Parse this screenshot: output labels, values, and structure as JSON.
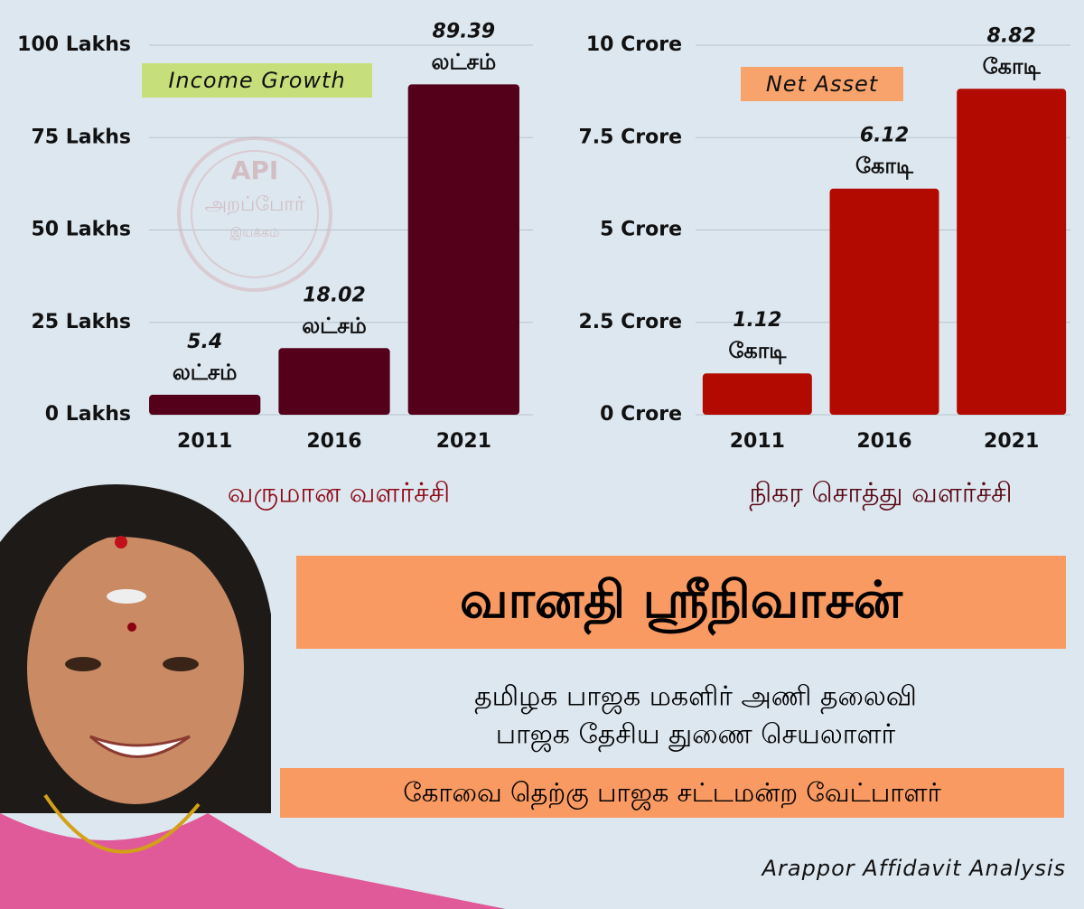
{
  "chart_data": [
    {
      "type": "bar",
      "tag": "Income  Growth",
      "caption": "வருமான வளர்ச்சி",
      "categories": [
        "2011",
        "2016",
        "2021"
      ],
      "values": [
        5.4,
        18.02,
        89.39
      ],
      "value_unit": "லட்சம்",
      "color": "#55001a",
      "tag_color": "#c6df7a",
      "caption_color": "#8e0a16",
      "ylim": [
        0,
        100
      ],
      "yticks": [
        {
          "value": 0,
          "label": "0 Lakhs"
        },
        {
          "value": 25,
          "label": "25 Lakhs"
        },
        {
          "value": 50,
          "label": "50 Lakhs"
        },
        {
          "value": 75,
          "label": "75 Lakhs"
        },
        {
          "value": 100,
          "label": "100 Lakhs"
        }
      ],
      "grid": true
    },
    {
      "type": "bar",
      "tag": "Net  Asset",
      "caption": "நிகர சொத்து வளர்ச்சி",
      "categories": [
        "2011",
        "2016",
        "2021"
      ],
      "values": [
        1.12,
        6.12,
        8.82
      ],
      "value_unit": "கோடி",
      "color": "#b30a00",
      "tag_color": "#f9a36c",
      "caption_color": "#5a0a16",
      "ylim": [
        0,
        10
      ],
      "yticks": [
        {
          "value": 0,
          "label": "0 Crore"
        },
        {
          "value": 2.5,
          "label": "2.5 Crore"
        },
        {
          "value": 5,
          "label": "5 Crore"
        },
        {
          "value": 7.5,
          "label": "7.5 Crore"
        },
        {
          "value": 10,
          "label": "10 Crore"
        }
      ],
      "grid": true
    }
  ],
  "watermark": {
    "line1": "API",
    "line2": "அறப்போர்",
    "line3": "இயக்கம்"
  },
  "profile": {
    "name": "வானதி ஸ்ரீநிவாசன்",
    "role1": "தமிழக பாஜக மகளிர் அணி தலைவி",
    "role2": "பாஜக தேசிய துணை செயலாளர்",
    "candidacy": "கோவை தெற்கு பாஜக சட்டமன்ற வேட்பாளர்",
    "source": "Arappor Affidavit Analysis"
  }
}
